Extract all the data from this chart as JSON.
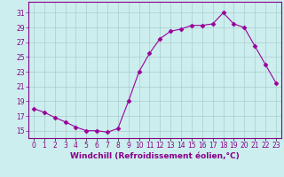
{
  "x": [
    0,
    1,
    2,
    3,
    4,
    5,
    6,
    7,
    8,
    9,
    10,
    11,
    12,
    13,
    14,
    15,
    16,
    17,
    18,
    19,
    20,
    21,
    22,
    23
  ],
  "y": [
    18.0,
    17.5,
    16.8,
    16.2,
    15.5,
    15.0,
    15.0,
    14.8,
    15.3,
    19.0,
    23.0,
    25.5,
    27.5,
    28.5,
    28.8,
    29.3,
    29.3,
    29.5,
    31.0,
    29.5,
    29.0,
    26.5,
    24.0,
    21.5
  ],
  "line_color": "#990099",
  "marker": "D",
  "marker_size": 2.5,
  "bg_color": "#cceeee",
  "grid_color": "#aacccc",
  "xlabel": "Windchill (Refroidissement éolien,°C)",
  "ylabel": "",
  "xlim": [
    -0.5,
    23.5
  ],
  "ylim": [
    14.0,
    32.5
  ],
  "yticks": [
    15,
    17,
    19,
    21,
    23,
    25,
    27,
    29,
    31
  ],
  "xtick_labels": [
    "0",
    "1",
    "2",
    "3",
    "4",
    "5",
    "6",
    "7",
    "8",
    "9",
    "10",
    "11",
    "12",
    "13",
    "14",
    "15",
    "16",
    "17",
    "18",
    "19",
    "20",
    "21",
    "22",
    "23"
  ],
  "tick_color": "#880088",
  "label_fontsize": 6.5,
  "tick_fontsize": 5.5
}
